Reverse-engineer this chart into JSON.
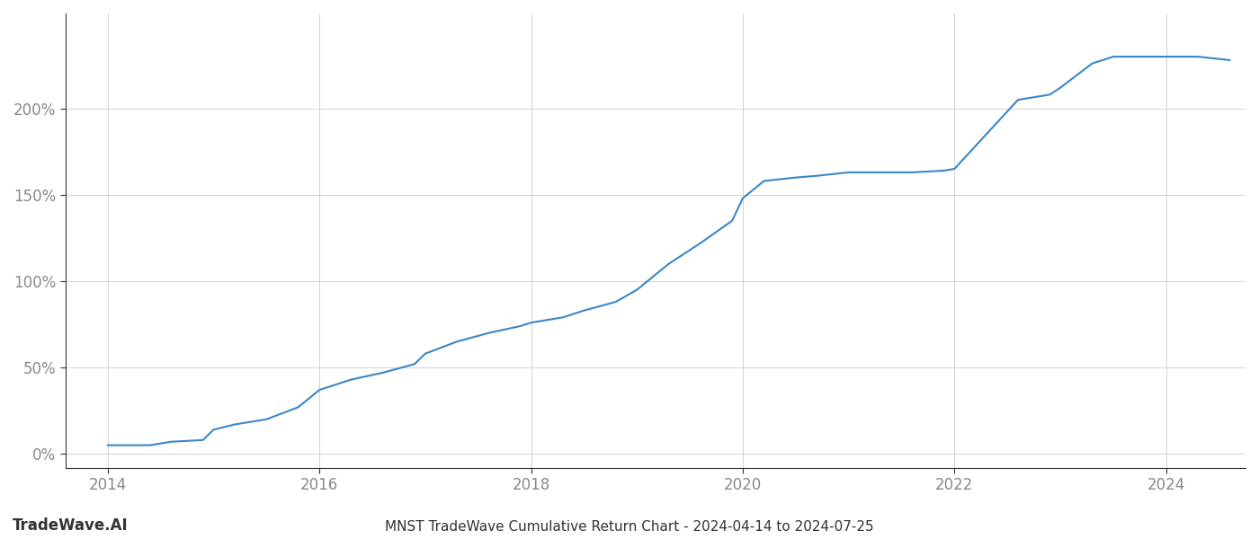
{
  "title": "MNST TradeWave Cumulative Return Chart - 2024-04-14 to 2024-07-25",
  "watermark": "TradeWave.AI",
  "line_color": "#3a87c8",
  "line_width": 1.5,
  "background_color": "#ffffff",
  "grid_color": "#cccccc",
  "x_values": [
    2014.0,
    2014.2,
    2014.4,
    2014.6,
    2014.9,
    2015.0,
    2015.2,
    2015.5,
    2015.8,
    2016.0,
    2016.3,
    2016.6,
    2016.9,
    2017.0,
    2017.3,
    2017.6,
    2017.9,
    2018.0,
    2018.3,
    2018.5,
    2018.8,
    2019.0,
    2019.3,
    2019.6,
    2019.9,
    2020.0,
    2020.2,
    2020.5,
    2020.7,
    2021.0,
    2021.3,
    2021.6,
    2021.9,
    2022.0,
    2022.3,
    2022.6,
    2022.9,
    2023.0,
    2023.3,
    2023.5,
    2023.8,
    2024.0,
    2024.3,
    2024.6
  ],
  "y_values": [
    5,
    5,
    5,
    7,
    8,
    14,
    17,
    20,
    27,
    37,
    43,
    47,
    52,
    58,
    65,
    70,
    74,
    76,
    79,
    83,
    88,
    95,
    110,
    122,
    135,
    148,
    158,
    160,
    161,
    163,
    163,
    163,
    164,
    165,
    185,
    205,
    208,
    212,
    226,
    230,
    230,
    230,
    230,
    228
  ],
  "yticks": [
    0,
    50,
    100,
    150,
    200
  ],
  "xticks": [
    2014,
    2016,
    2018,
    2020,
    2022,
    2024
  ],
  "xlim": [
    2013.6,
    2024.75
  ],
  "ylim": [
    -8,
    255
  ],
  "tick_label_color": "#888888",
  "tick_fontsize": 12,
  "title_fontsize": 11,
  "watermark_fontsize": 12
}
